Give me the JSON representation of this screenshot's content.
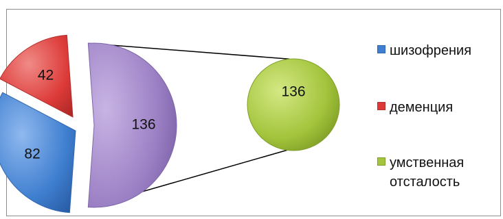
{
  "chart_data": {
    "type": "pie",
    "subtype": "pie-of-pie",
    "title": "",
    "legend_position": "right",
    "categories": [
      "шизофрения",
      "деменция",
      "умственная отсталость"
    ],
    "series": [
      {
        "values": [
          82,
          42,
          136
        ]
      }
    ],
    "secondary_pie": {
      "categories": [
        "умственная отсталость"
      ],
      "values": [
        136
      ]
    },
    "colors": [
      "#3f7fd0",
      "#dc3a38",
      "#9b7fc4",
      "#a3c43c"
    ]
  }
}
